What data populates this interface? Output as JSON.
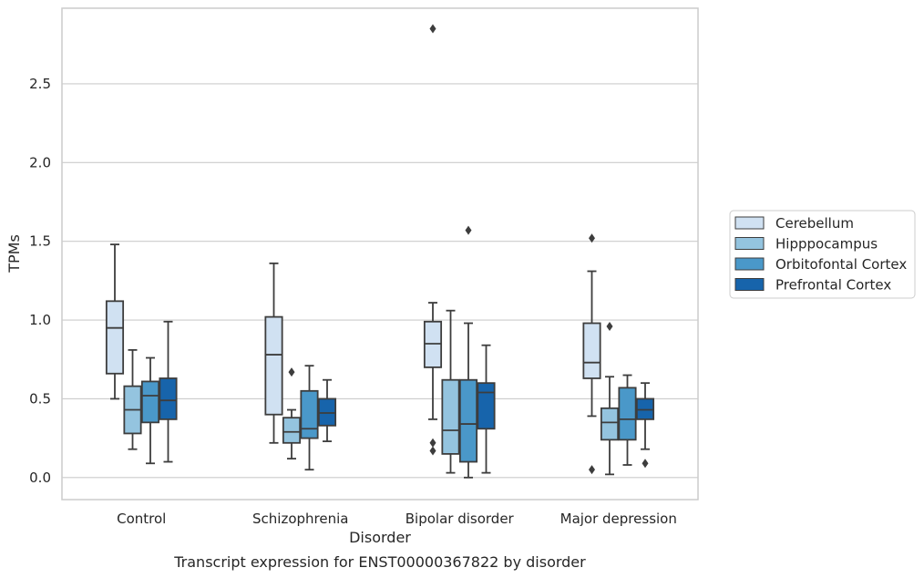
{
  "chart_data": {
    "type": "box",
    "caption": "Transcript expression for ENST00000367822 by disorder",
    "xlabel": "Disorder",
    "ylabel": "TPMs",
    "ylim": [
      -0.14,
      2.98
    ],
    "yticks": [
      0.0,
      0.5,
      1.0,
      1.5,
      2.0,
      2.5
    ],
    "ytick_labels": [
      "0.0",
      "0.5",
      "1.0",
      "1.5",
      "2.0",
      "2.5"
    ],
    "grid": "horizontal",
    "legend_position": "right",
    "categories": [
      "Control",
      "Schizophrenia",
      "Bipolar disorder",
      "Major depression"
    ],
    "series": [
      {
        "name": "Cerebellum",
        "color": "#d0e1f2",
        "boxes": [
          {
            "q1": 0.66,
            "median": 0.95,
            "q3": 1.12,
            "whisker_low": 0.5,
            "whisker_high": 1.48,
            "outliers": []
          },
          {
            "q1": 0.4,
            "median": 0.78,
            "q3": 1.02,
            "whisker_low": 0.22,
            "whisker_high": 1.36,
            "outliers": []
          },
          {
            "q1": 0.7,
            "median": 0.85,
            "q3": 0.99,
            "whisker_low": 0.37,
            "whisker_high": 1.11,
            "outliers": [
              2.85,
              0.22,
              0.17
            ]
          },
          {
            "q1": 0.63,
            "median": 0.73,
            "q3": 0.98,
            "whisker_low": 0.39,
            "whisker_high": 1.31,
            "outliers": [
              1.52,
              0.05
            ]
          }
        ]
      },
      {
        "name": "Hipppocampus",
        "color": "#94c4df",
        "boxes": [
          {
            "q1": 0.28,
            "median": 0.43,
            "q3": 0.58,
            "whisker_low": 0.18,
            "whisker_high": 0.81,
            "outliers": []
          },
          {
            "q1": 0.22,
            "median": 0.29,
            "q3": 0.38,
            "whisker_low": 0.12,
            "whisker_high": 0.43,
            "outliers": [
              0.67
            ]
          },
          {
            "q1": 0.15,
            "median": 0.3,
            "q3": 0.62,
            "whisker_low": 0.03,
            "whisker_high": 1.06,
            "outliers": []
          },
          {
            "q1": 0.24,
            "median": 0.35,
            "q3": 0.44,
            "whisker_low": 0.02,
            "whisker_high": 0.64,
            "outliers": [
              0.96
            ]
          }
        ]
      },
      {
        "name": "Orbitofontal Cortex",
        "color": "#4a98c9",
        "boxes": [
          {
            "q1": 0.35,
            "median": 0.52,
            "q3": 0.61,
            "whisker_low": 0.09,
            "whisker_high": 0.76,
            "outliers": []
          },
          {
            "q1": 0.25,
            "median": 0.31,
            "q3": 0.55,
            "whisker_low": 0.05,
            "whisker_high": 0.71,
            "outliers": []
          },
          {
            "q1": 0.1,
            "median": 0.34,
            "q3": 0.62,
            "whisker_low": 0.0,
            "whisker_high": 0.98,
            "outliers": [
              1.57
            ]
          },
          {
            "q1": 0.24,
            "median": 0.37,
            "q3": 0.57,
            "whisker_low": 0.08,
            "whisker_high": 0.65,
            "outliers": []
          }
        ]
      },
      {
        "name": "Prefrontal Cortex",
        "color": "#1764ab",
        "boxes": [
          {
            "q1": 0.37,
            "median": 0.49,
            "q3": 0.63,
            "whisker_low": 0.1,
            "whisker_high": 0.99,
            "outliers": []
          },
          {
            "q1": 0.33,
            "median": 0.41,
            "q3": 0.5,
            "whisker_low": 0.23,
            "whisker_high": 0.62,
            "outliers": []
          },
          {
            "q1": 0.31,
            "median": 0.54,
            "q3": 0.6,
            "whisker_low": 0.03,
            "whisker_high": 0.84,
            "outliers": []
          },
          {
            "q1": 0.37,
            "median": 0.43,
            "q3": 0.5,
            "whisker_low": 0.18,
            "whisker_high": 0.6,
            "outliers": [
              0.09
            ]
          }
        ]
      }
    ]
  }
}
